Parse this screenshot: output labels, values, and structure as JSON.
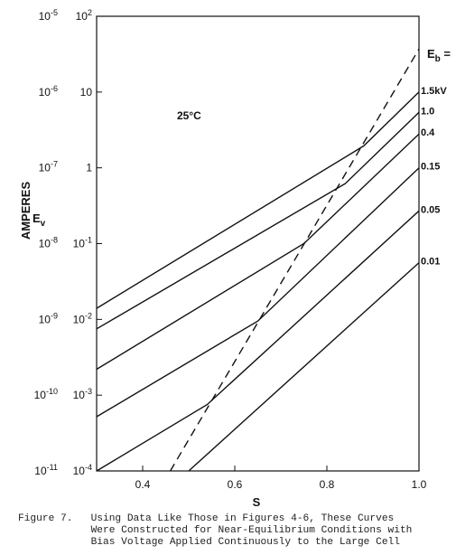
{
  "chart_data": {
    "type": "line",
    "title": "",
    "annotation": "25°C",
    "xlabel": "S",
    "ylabel": "AMPERES",
    "y2label": "Ev",
    "xlim": [
      0.3,
      1.0
    ],
    "ylim_ev": [
      0.0001,
      100
    ],
    "ylim_amperes": [
      1e-11,
      1e-05
    ],
    "x_ticks": [
      "0.4",
      "0.6",
      "0.8",
      "1.0"
    ],
    "y_ticks_ev": [
      "10-4",
      "10-3",
      "10-2",
      "10-1",
      "1",
      "10",
      "102"
    ],
    "y_ticks_amperes": [
      "10-11",
      "10-10",
      "10-9",
      "10-8",
      "10-7",
      "10-6",
      "10-5"
    ],
    "legend_title": "Eb =",
    "series": [
      {
        "name": "1.5kV",
        "style": "solid",
        "points": [
          [
            0.3,
            0.014
          ],
          [
            0.88,
            1.95
          ],
          [
            1.0,
            10
          ]
        ]
      },
      {
        "name": "1.0",
        "style": "solid",
        "points": [
          [
            0.3,
            0.0075
          ],
          [
            0.84,
            0.62
          ],
          [
            1.0,
            5.4
          ]
        ]
      },
      {
        "name": "0.4",
        "style": "solid",
        "points": [
          [
            0.3,
            0.0022
          ],
          [
            0.75,
            0.1
          ],
          [
            1.0,
            2.8
          ]
        ]
      },
      {
        "name": "0.15",
        "style": "solid",
        "points": [
          [
            0.3,
            0.00052
          ],
          [
            0.65,
            0.0095
          ],
          [
            1.0,
            1.0
          ]
        ]
      },
      {
        "name": "0.05",
        "style": "solid",
        "points": [
          [
            0.3,
            0.0001
          ],
          [
            0.54,
            0.00075
          ],
          [
            1.0,
            0.27
          ]
        ]
      },
      {
        "name": "0.01",
        "style": "solid",
        "points": [
          [
            0.5,
            0.0001
          ],
          [
            1.0,
            0.056
          ]
        ]
      },
      {
        "name": "",
        "style": "dashed",
        "points": [
          [
            0.46,
            0.0001
          ],
          [
            1.0,
            37
          ]
        ]
      }
    ]
  },
  "caption": {
    "line1": "Figure 7.   Using Data Like Those in Figures 4-6, These Curves",
    "line2": "            Were Constructed for Near-Equilibrium Conditions with",
    "line3": "            Bias Voltage Applied Continuously to the Large Cell"
  }
}
